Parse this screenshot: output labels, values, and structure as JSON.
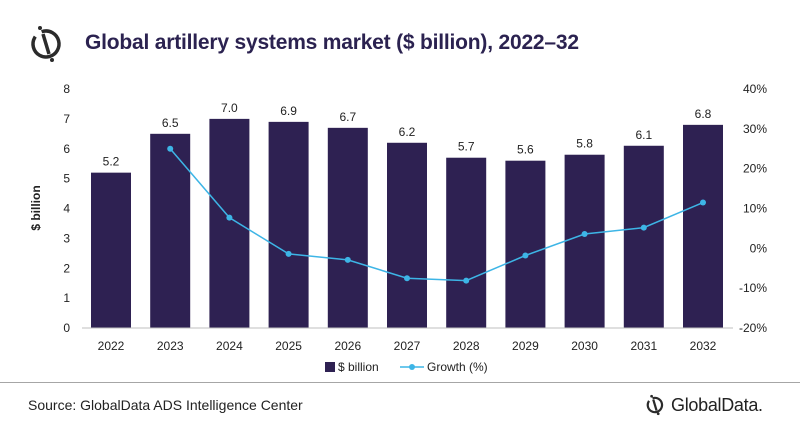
{
  "header": {
    "title": "Global artillery systems market ($ billion), 2022–32"
  },
  "footer": {
    "source": "Source: GlobalData ADS Intelligence Center",
    "brand": "GlobalData."
  },
  "colors": {
    "bar": "#2e2152",
    "line": "#3db5e6",
    "title": "#2b2250"
  },
  "chart_data": {
    "type": "bar",
    "title": "Global artillery systems market ($ billion), 2022–32",
    "categories": [
      "2022",
      "2023",
      "2024",
      "2025",
      "2026",
      "2027",
      "2028",
      "2029",
      "2030",
      "2031",
      "2032"
    ],
    "series": [
      {
        "name": "$ billion",
        "type": "bar",
        "axis": "left",
        "values": [
          5.2,
          6.5,
          7.0,
          6.9,
          6.7,
          6.2,
          5.7,
          5.6,
          5.8,
          6.1,
          6.8
        ],
        "labels": [
          "5.2",
          "6.5",
          "7.0",
          "6.9",
          "6.7",
          "6.2",
          "5.7",
          "5.6",
          "5.8",
          "6.1",
          "6.8"
        ]
      },
      {
        "name": "Growth (%)",
        "type": "line",
        "axis": "right",
        "values": [
          null,
          25.0,
          7.7,
          -1.4,
          -2.9,
          -7.5,
          -8.1,
          -1.8,
          3.6,
          5.2,
          11.5
        ]
      }
    ],
    "ylabel": "$ billion",
    "ylim": [
      0,
      8
    ],
    "yticks": [
      "0",
      "1",
      "2",
      "3",
      "4",
      "5",
      "6",
      "7",
      "8"
    ],
    "y2lim": [
      -20,
      40
    ],
    "y2ticks": [
      "-20%",
      "-10%",
      "0%",
      "10%",
      "20%",
      "30%",
      "40%"
    ],
    "grid": false,
    "legend": "bottom"
  }
}
